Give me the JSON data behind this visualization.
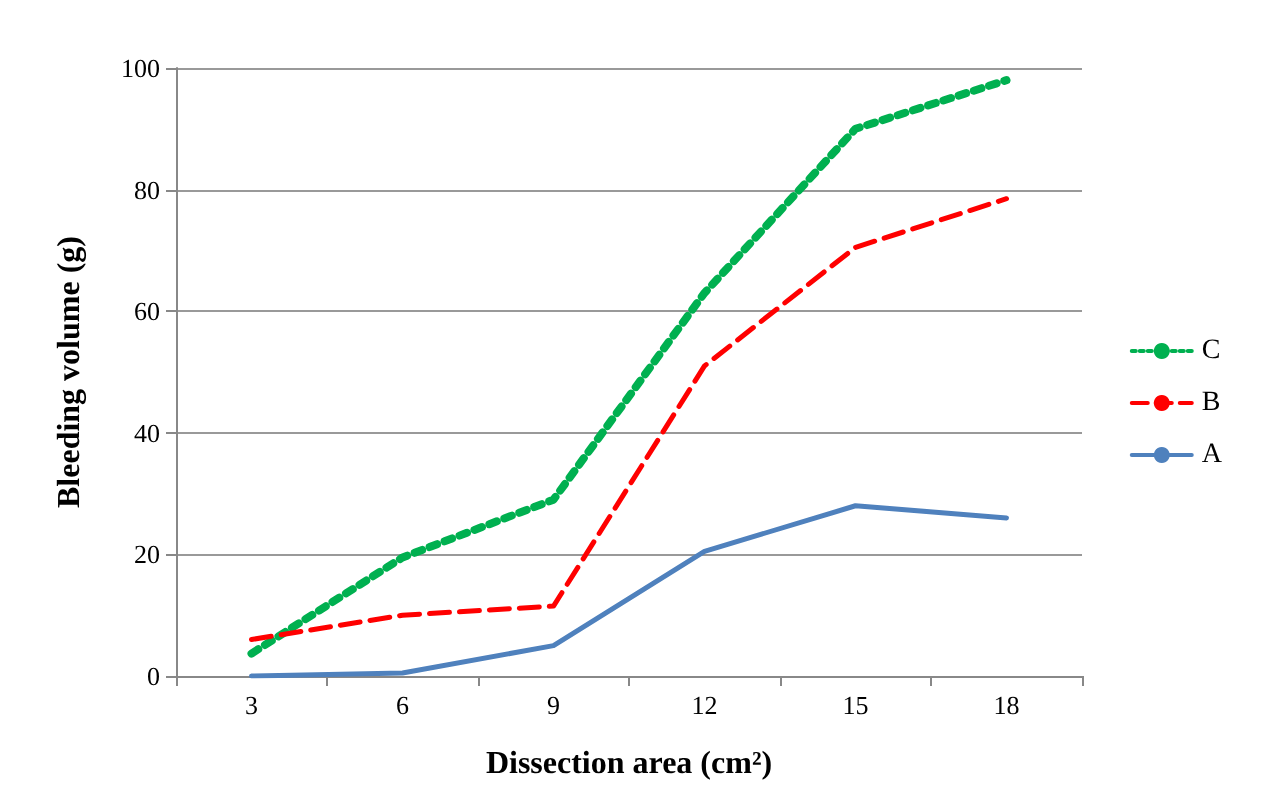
{
  "chart_data": {
    "type": "line",
    "xlabel": "Dissection area (cm²)",
    "ylabel": "Bleeding volume (g)",
    "categories": [
      "3",
      "6",
      "9",
      "12",
      "15",
      "18"
    ],
    "series": [
      {
        "name": "C",
        "color": "#00b050",
        "line_style": "dotted",
        "values": [
          3.7,
          19.5,
          29,
          63,
          90,
          98
        ]
      },
      {
        "name": "B",
        "color": "#ff0000",
        "line_style": "dashed",
        "values": [
          6,
          10,
          11.5,
          51,
          70.5,
          78.5
        ]
      },
      {
        "name": "A",
        "color": "#4f81bd",
        "line_style": "solid",
        "values": [
          0,
          0.5,
          5,
          20.5,
          28,
          26
        ]
      }
    ],
    "ylim": [
      0,
      100
    ],
    "yticks": [
      0,
      20,
      40,
      60,
      80,
      100
    ],
    "grid": "y",
    "legend": "right",
    "marker": "none"
  }
}
